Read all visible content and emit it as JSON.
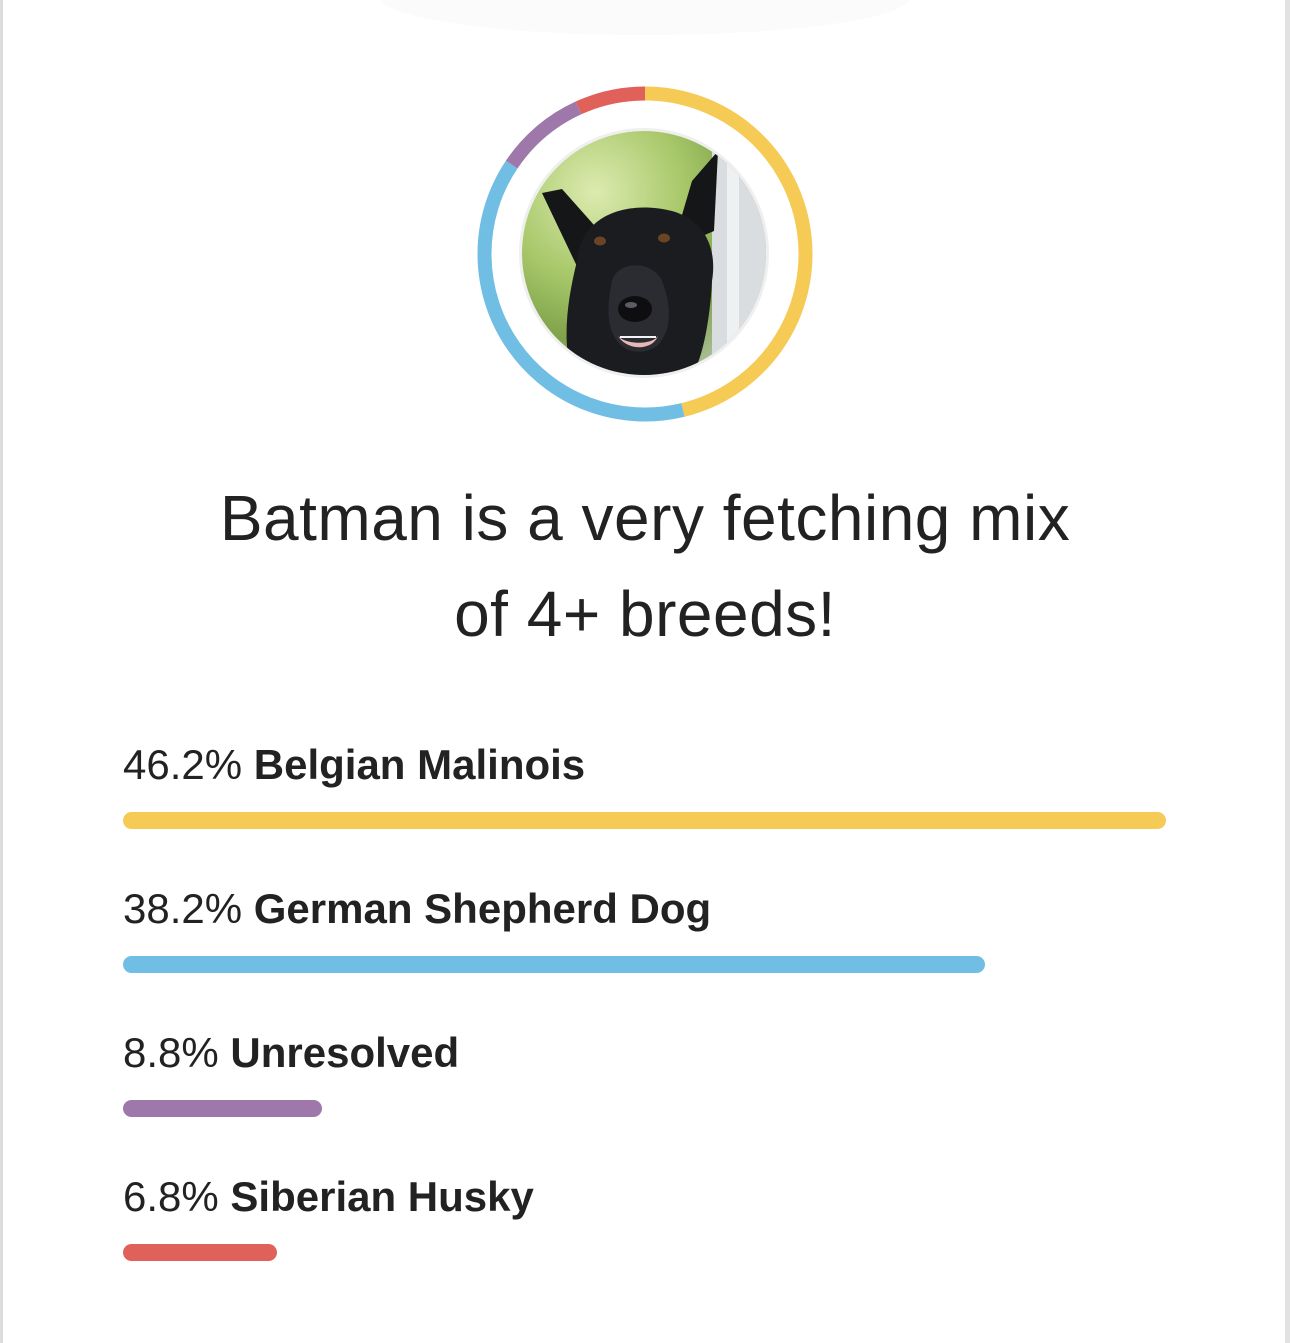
{
  "dog": {
    "name": "Batman",
    "photo_alt": "dog-photo"
  },
  "headline": {
    "line1": "Batman is a very fetching mix",
    "line2": "of 4+ breeds!"
  },
  "breeds": [
    {
      "pct": "46.2%",
      "name": "Belgian Malinois",
      "value": 46.2,
      "color": "#F5CA55"
    },
    {
      "pct": "38.2%",
      "name": "German Shepherd Dog",
      "value": 38.2,
      "color": "#71BEE4"
    },
    {
      "pct": "8.8%",
      "name": "Unresolved",
      "value": 8.8,
      "color": "#9E78AB"
    },
    {
      "pct": "6.8%",
      "name": "Siberian Husky",
      "value": 6.8,
      "color": "#E0605A"
    }
  ],
  "chart_data": [
    {
      "type": "pie",
      "subtype": "donut",
      "title": "",
      "categories": [
        "Belgian Malinois",
        "German Shepherd Dog",
        "Unresolved",
        "Siberian Husky"
      ],
      "values": [
        46.2,
        38.2,
        8.8,
        6.8
      ],
      "colors": [
        "#F5CA55",
        "#71BEE4",
        "#9E78AB",
        "#E0605A"
      ],
      "start_angle": "12 o'clock, clockwise",
      "legend": "none"
    },
    {
      "type": "bar",
      "orientation": "horizontal",
      "title": "Batman is a very fetching mix of 4+ breeds!",
      "categories": [
        "Belgian Malinois",
        "German Shepherd Dog",
        "Unresolved",
        "Siberian Husky"
      ],
      "values": [
        46.2,
        38.2,
        8.8,
        6.8
      ],
      "labels": [
        "46.2%",
        "38.2%",
        "8.8%",
        "6.8%"
      ],
      "colors": [
        "#F5CA55",
        "#71BEE4",
        "#9E78AB",
        "#E0605A"
      ],
      "xlabel": "",
      "ylabel": "",
      "scale": "bars scaled relative to largest value",
      "grid": false
    }
  ]
}
